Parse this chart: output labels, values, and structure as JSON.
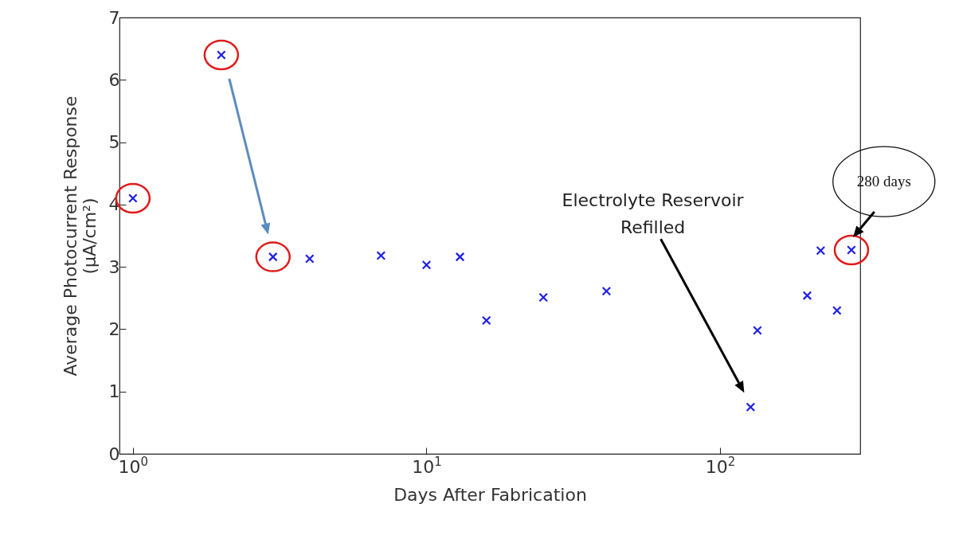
{
  "chart_data": {
    "type": "scatter",
    "xlabel": "Days After Fabrication",
    "ylabel": "Average Photocurrent Response (μA/cm²)",
    "log": "x",
    "grid": false,
    "marker": "cross",
    "x": [
      1,
      2,
      3,
      4,
      7,
      10,
      13,
      16,
      25,
      41,
      127,
      134,
      198,
      220,
      250,
      280
    ],
    "series": [
      {
        "color": "#1f1fe6",
        "values": [
          4.1,
          6.4,
          3.16,
          3.13,
          3.18,
          3.03,
          3.16,
          2.14,
          2.51,
          2.61,
          0.75,
          1.98,
          2.54,
          3.26,
          2.3,
          3.27
        ]
      }
    ],
    "xlim": [
      0.9,
      300
    ],
    "xticks": [
      {
        "value": 1,
        "label": "10$^{0}$"
      },
      {
        "value": 10,
        "label": "10$^{1}$"
      },
      {
        "value": 100,
        "label": "10$^{2}$"
      }
    ],
    "ylim": [
      0,
      7
    ],
    "yticks": [
      0,
      1,
      2,
      3,
      4,
      5,
      6,
      7
    ],
    "annotations": [
      "Electrolyte Reservoir Refilled",
      "280 days"
    ]
  }
}
